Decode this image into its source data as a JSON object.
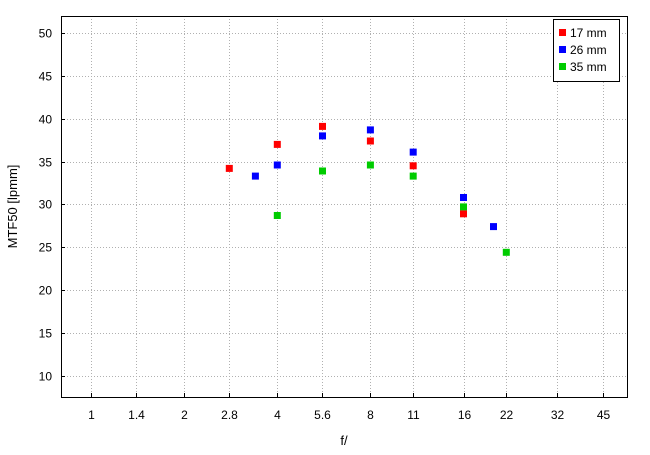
{
  "chart_data": {
    "type": "scatter",
    "title": "",
    "xlabel": "f/",
    "ylabel": "MTF50 [lpmm]",
    "x_scale": "log2 (f-number stops)",
    "x_ticks": [
      "1",
      "1.4",
      "2",
      "2.8",
      "4",
      "5.6",
      "8",
      "11",
      "16",
      "22",
      "32",
      "45"
    ],
    "xlim": [
      0.8,
      54
    ],
    "y_ticks": [
      "10",
      "15",
      "20",
      "25",
      "30",
      "35",
      "40",
      "45",
      "50"
    ],
    "ylim": [
      7.5,
      52
    ],
    "grid": true,
    "legend_position": "top-right",
    "series": [
      {
        "name": "17 mm",
        "color": "#ff0000",
        "points": [
          {
            "x": 2.8,
            "y": 34.2
          },
          {
            "x": 4,
            "y": 37.0
          },
          {
            "x": 5.6,
            "y": 39.1
          },
          {
            "x": 8,
            "y": 37.4
          },
          {
            "x": 11,
            "y": 34.5
          },
          {
            "x": 16,
            "y": 28.9
          }
        ]
      },
      {
        "name": "26 mm",
        "color": "#0000ff",
        "points": [
          {
            "x": 3.4,
            "y": 33.3
          },
          {
            "x": 4,
            "y": 34.6
          },
          {
            "x": 5.6,
            "y": 38.0
          },
          {
            "x": 8,
            "y": 38.7
          },
          {
            "x": 11,
            "y": 36.1
          },
          {
            "x": 16,
            "y": 30.8
          },
          {
            "x": 20,
            "y": 27.4
          }
        ]
      },
      {
        "name": "35 mm",
        "color": "#00cc00",
        "points": [
          {
            "x": 4,
            "y": 28.7
          },
          {
            "x": 5.6,
            "y": 33.9
          },
          {
            "x": 8,
            "y": 34.6
          },
          {
            "x": 11,
            "y": 33.3
          },
          {
            "x": 16,
            "y": 29.7
          },
          {
            "x": 22,
            "y": 24.4
          }
        ]
      }
    ]
  }
}
